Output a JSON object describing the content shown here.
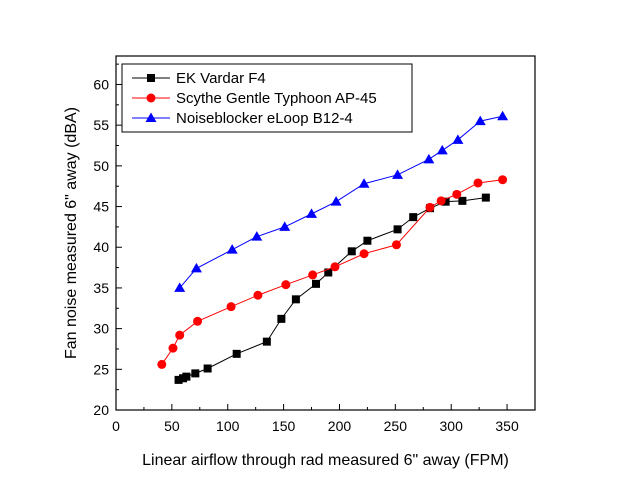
{
  "chart_data": {
    "type": "line",
    "title": "",
    "xlabel": "Linear airflow through rad measured 6\" away (FPM)",
    "ylabel": "Fan noise measured 6\" away (dBA)",
    "xlim": [
      0,
      375
    ],
    "ylim": [
      20,
      63.5
    ],
    "x_ticks": [
      0,
      50,
      100,
      150,
      200,
      250,
      300,
      350
    ],
    "y_ticks": [
      20,
      25,
      30,
      35,
      40,
      45,
      50,
      55,
      60
    ],
    "grid": false,
    "legend_position": "top-left",
    "series": [
      {
        "name": "EK Vardar F4",
        "color": "#000000",
        "marker": "square",
        "points": [
          [
            56,
            23.7
          ],
          [
            60,
            23.9
          ],
          [
            63,
            24.1
          ],
          [
            71,
            24.5
          ],
          [
            82,
            25.1
          ],
          [
            108,
            26.9
          ],
          [
            135,
            28.4
          ],
          [
            148,
            31.2
          ],
          [
            161,
            33.6
          ],
          [
            179,
            35.5
          ],
          [
            190,
            36.9
          ],
          [
            211,
            39.5
          ],
          [
            225,
            40.8
          ],
          [
            252,
            42.2
          ],
          [
            266,
            43.7
          ],
          [
            281,
            44.8
          ],
          [
            295,
            45.6
          ],
          [
            310,
            45.7
          ],
          [
            331,
            46.1
          ]
        ]
      },
      {
        "name": "Scythe Gentle Typhoon AP-45",
        "color": "#ff0000",
        "marker": "circle",
        "points": [
          [
            41,
            25.6
          ],
          [
            51,
            27.6
          ],
          [
            57,
            29.2
          ],
          [
            73,
            30.9
          ],
          [
            103,
            32.7
          ],
          [
            127,
            34.1
          ],
          [
            152,
            35.4
          ],
          [
            176,
            36.6
          ],
          [
            196,
            37.6
          ],
          [
            222,
            39.2
          ],
          [
            251,
            40.3
          ],
          [
            281,
            44.9
          ],
          [
            291,
            45.7
          ],
          [
            305,
            46.5
          ],
          [
            324,
            47.9
          ],
          [
            346,
            48.3
          ]
        ]
      },
      {
        "name": "Noiseblocker eLoop B12-4",
        "color": "#0000ff",
        "marker": "triangle",
        "points": [
          [
            57,
            35.0
          ],
          [
            72,
            37.4
          ],
          [
            104,
            39.7
          ],
          [
            126,
            41.3
          ],
          [
            151,
            42.5
          ],
          [
            175,
            44.1
          ],
          [
            197,
            45.6
          ],
          [
            222,
            47.8
          ],
          [
            252,
            48.9
          ],
          [
            280,
            50.8
          ],
          [
            292,
            51.9
          ],
          [
            306,
            53.2
          ],
          [
            326,
            55.5
          ],
          [
            346,
            56.1
          ]
        ]
      }
    ]
  }
}
